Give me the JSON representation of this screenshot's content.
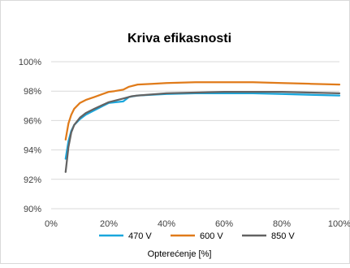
{
  "chart_data": {
    "type": "line",
    "title": "Kriva efikasnosti",
    "xlabel": "Opterećenje [%]",
    "ylabel": "",
    "xlim": [
      0,
      100
    ],
    "ylim": [
      90,
      100
    ],
    "xticks": [
      0,
      20,
      40,
      60,
      80,
      100
    ],
    "yticks": [
      90,
      92,
      94,
      96,
      98,
      100
    ],
    "xtick_labels": [
      "0%",
      "20%",
      "40%",
      "60%",
      "80%",
      "100%"
    ],
    "ytick_labels": [
      "90%",
      "92%",
      "94%",
      "96%",
      "98%",
      "100%"
    ],
    "grid": "horizontal",
    "legend_position": "bottom",
    "series": [
      {
        "name": "470 V",
        "color": "#1aa7dd",
        "x": [
          5,
          6,
          7,
          8,
          10,
          12,
          15,
          20,
          25,
          27,
          30,
          40,
          50,
          60,
          70,
          80,
          90,
          100
        ],
        "y": [
          93.4,
          94.6,
          95.3,
          95.7,
          96.1,
          96.4,
          96.7,
          97.2,
          97.3,
          97.6,
          97.7,
          97.8,
          97.85,
          97.85,
          97.85,
          97.8,
          97.75,
          97.7
        ]
      },
      {
        "name": "600 V",
        "color": "#e07b1a",
        "x": [
          5,
          6,
          7,
          8,
          10,
          12,
          15,
          20,
          22,
          25,
          27,
          30,
          35,
          40,
          50,
          60,
          70,
          80,
          90,
          100
        ],
        "y": [
          94.7,
          95.8,
          96.4,
          96.8,
          97.2,
          97.4,
          97.6,
          97.95,
          98.0,
          98.1,
          98.3,
          98.45,
          98.5,
          98.55,
          98.6,
          98.6,
          98.6,
          98.55,
          98.5,
          98.45
        ]
      },
      {
        "name": "850 V",
        "color": "#636363",
        "x": [
          5,
          6,
          7,
          8,
          10,
          12,
          15,
          20,
          25,
          28,
          30,
          40,
          50,
          60,
          70,
          80,
          90,
          100
        ],
        "y": [
          92.5,
          94.2,
          95.2,
          95.7,
          96.2,
          96.5,
          96.8,
          97.25,
          97.5,
          97.65,
          97.7,
          97.85,
          97.9,
          97.95,
          97.95,
          97.95,
          97.9,
          97.85
        ]
      }
    ]
  }
}
